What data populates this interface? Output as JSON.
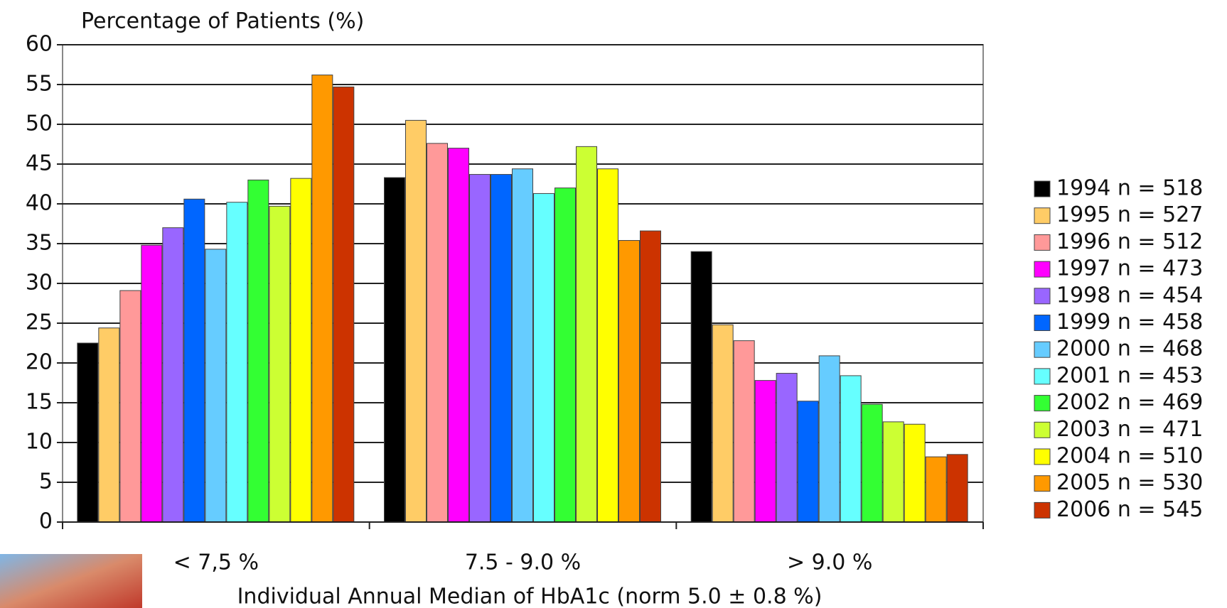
{
  "chart_data": {
    "type": "bar",
    "y_label": "Percentage of Patients (%)",
    "x_label": "Individual Annual Median of HbA1c  (norm 5.0 ± 0.8 %)",
    "categories": [
      "< 7,5 %",
      "7.5 -  9.0 %",
      "> 9.0 %"
    ],
    "ylim": [
      0,
      60
    ],
    "yticks": [
      0,
      5,
      10,
      15,
      20,
      25,
      30,
      35,
      40,
      45,
      50,
      55,
      60
    ],
    "grid": true,
    "legend": "right",
    "series": [
      {
        "name": "1994 n = 518",
        "color": "#000000",
        "values": [
          22.5,
          43.3,
          34.0
        ]
      },
      {
        "name": "1995 n = 527",
        "color": "#ffcc66",
        "values": [
          24.4,
          50.5,
          24.8
        ]
      },
      {
        "name": "1996 n = 512",
        "color": "#ff9999",
        "values": [
          29.1,
          47.6,
          22.8
        ]
      },
      {
        "name": "1997 n = 473",
        "color": "#ff00ff",
        "values": [
          34.8,
          47.0,
          17.8
        ]
      },
      {
        "name": "1998 n = 454",
        "color": "#9966ff",
        "values": [
          37.0,
          43.7,
          18.7
        ]
      },
      {
        "name": "1999 n = 458",
        "color": "#0066ff",
        "values": [
          40.6,
          43.7,
          15.2
        ]
      },
      {
        "name": "2000 n = 468",
        "color": "#66ccff",
        "values": [
          34.3,
          44.4,
          20.9
        ]
      },
      {
        "name": "2001 n = 453",
        "color": "#66ffff",
        "values": [
          40.2,
          41.3,
          18.4
        ]
      },
      {
        "name": "2002 n = 469",
        "color": "#33ff33",
        "values": [
          43.0,
          42.0,
          14.8
        ]
      },
      {
        "name": "2003 n = 471",
        "color": "#ccff33",
        "values": [
          39.7,
          47.2,
          12.6
        ]
      },
      {
        "name": "2004 n = 510",
        "color": "#ffff00",
        "values": [
          43.2,
          44.4,
          12.3
        ]
      },
      {
        "name": "2005 n = 530",
        "color": "#ff9900",
        "values": [
          56.2,
          35.4,
          8.2
        ]
      },
      {
        "name": "2006 n = 545",
        "color": "#cc3300",
        "values": [
          54.7,
          36.6,
          8.5
        ]
      }
    ]
  }
}
